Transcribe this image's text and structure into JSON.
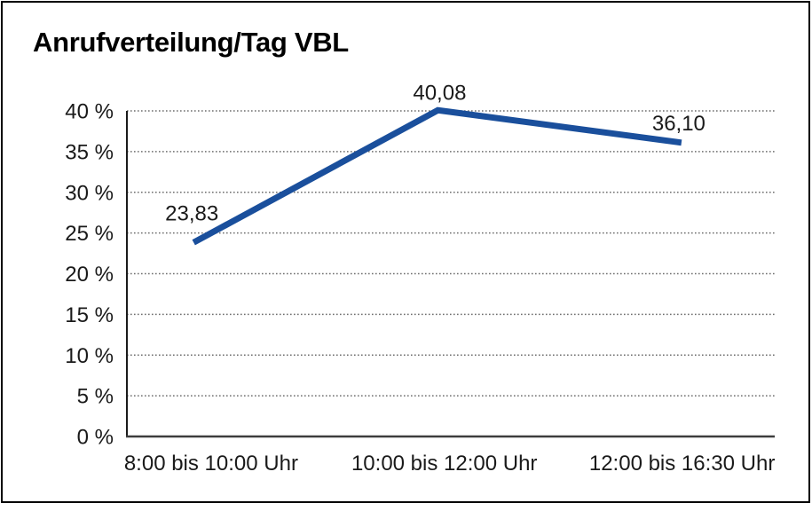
{
  "title": "Anrufverteilung/Tag VBL",
  "chart_data": {
    "type": "line",
    "title": "Anrufverteilung/Tag VBL",
    "categories": [
      "8:00 bis 10:00 Uhr",
      "10:00 bis 12:00 Uhr",
      "12:00 bis 16:30 Uhr"
    ],
    "series": [
      {
        "name": "Anrufverteilung/Tag VBL",
        "values": [
          23.83,
          40.08,
          36.1
        ],
        "data_labels": [
          "23,83",
          "40,08",
          "36,10"
        ],
        "color": "#1A4F9C"
      }
    ],
    "ylim": [
      0,
      40
    ],
    "y_ticks": [
      {
        "value": 0,
        "label": "0 %"
      },
      {
        "value": 5,
        "label": "5 %"
      },
      {
        "value": 10,
        "label": "10 %"
      },
      {
        "value": 15,
        "label": "15 %"
      },
      {
        "value": 20,
        "label": "20 %"
      },
      {
        "value": 25,
        "label": "25 %"
      },
      {
        "value": 30,
        "label": "30 %"
      },
      {
        "value": 35,
        "label": "35 %"
      },
      {
        "value": 40,
        "label": "40 %"
      },
      {
        "value": 45,
        "label": ""
      }
    ],
    "xlabel": "",
    "ylabel": "",
    "grid": "horizontal dotted",
    "legend": "none"
  },
  "colors": {
    "line": "#1A4F9C",
    "text": "#1a1a1a",
    "grid": "#6e6e6e",
    "x_axis": "#3d3d3d",
    "y_axis": "#1a1a1a",
    "border": "#000000"
  }
}
